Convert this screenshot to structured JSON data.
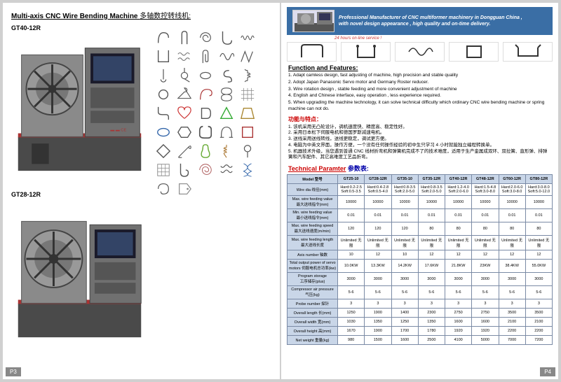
{
  "left": {
    "pageNum": "P3",
    "title_en": "Multi-axis CNC Wire Bending Machine",
    "title_cn": "多轴数控转线机:",
    "machines": [
      {
        "label": "GT40-12R"
      },
      {
        "label": "GT28-12R"
      }
    ],
    "sampleIcons": [
      "spring",
      "hairpin",
      "spiral",
      "hook",
      "coil-long",
      "bracket-u",
      "coil-long2",
      "clip",
      "wave",
      "zigzag",
      "pin",
      "torsion",
      "loop",
      "s-hook",
      "ext-spring",
      "ring",
      "hanger",
      "curl",
      "figure8",
      "mesh",
      "s-bend",
      "heart",
      "d-ring",
      "triangle",
      "trap",
      "oval",
      "hex",
      "carabiner",
      "omega",
      "square",
      "diamond",
      "safety-pin",
      "pear",
      "cork",
      "eyelet",
      "grid",
      "hook2",
      "spiral2",
      "coil3",
      "dna",
      "loop2",
      "tag"
    ]
  },
  "right": {
    "pageNum": "P4",
    "banner": {
      "line1": "Professional Manufacturer of CNC multiformer machinery in Dongguan China ,",
      "line2": "with novel design appearance , high quality and on-time delivery.",
      "sub": "24 hours on-line service !"
    },
    "featuresHeader": "Function and Features:",
    "featuresEn": [
      "1. Adapt camless design, fast adjusting of machine, high precision and stable quality",
      "2. Adopt Japan Panasonic Servo motor and Germany Roster reducer.",
      "3. Wire rotation design , stable feeding and more convenient adjustment of machine",
      "4. English and Chinese interface, easy operation , less experience required.",
      "5. When upgrading the machine technology, it can solve technical difficulty which ordinary CNC wire bending machine or spring machine can not do."
    ],
    "featuresCnHeader": "功能与特点：",
    "featuresCn": [
      "1. 该机采用无凸轮设计，调机速度快、精度高、稳定性好。",
      "2. 采用日本松下伺服电机和德国罗斯减速电机。",
      "3. 送线采用送线转线，送线更稳定，调试更方便。",
      "4. 电脑为中英文界面，操作方便，一个没有任何操作经验的初中生只学习 4 小时就能独立编程转换单。",
      "5. 机器技术升级，当您遇到普通 CNC 线材折弯机和弹簧机完成不了的技术难度，适用于生产金属成双环、双拉簧、直形弹、排弹簧和汽车配件、其它高难度工艺品折弯。"
    ],
    "paramHeader_en": "Technical Paramter",
    "paramHeader_cn": "参数表:",
    "table": {
      "headerLabel": "Model 型号",
      "models": [
        "GT25-10",
        "GT28-12R",
        "GT35-10",
        "GT35-12R",
        "GT40-12R",
        "GT48-12R",
        "GT60-12R",
        "GT80-12R"
      ],
      "rows": [
        {
          "label": "Wire dia 线径(mm)",
          "cells": [
            "Hard:0.2-2.5\nSoft:0.5-3.5",
            "Hard:0.4-2.8\nSoft:0.5-4.0",
            "Hard:0.8-3.5\nSoft:2.0-5.0",
            "Hard:0.8-3.5\nSoft:2.0-5.0",
            "Hard:1.2-4.0\nSoft:2.0-6.0",
            "Hard:1.5-4.8\nSoft:3.0-8.0",
            "Hard:2.0-6.0\nSoft:3.0-8.0",
            "Hard:3.0-8.0\nSoft:5.0-12.0"
          ]
        },
        {
          "label": "Max. wire feeding value\n最大送线指令(mm)",
          "cells": [
            "10000",
            "10000",
            "10000",
            "10000",
            "10000",
            "10000",
            "10000",
            "10000"
          ]
        },
        {
          "label": "Min. wire feeding value\n最小送线指令(mm)",
          "cells": [
            "0.01",
            "0.01",
            "0.01",
            "0.01",
            "0.01",
            "0.01",
            "0.01",
            "0.01"
          ]
        },
        {
          "label": "Max. wire feeding speed\n最大送线速度(m/min)",
          "cells": [
            "120",
            "120",
            "120",
            "80",
            "80",
            "80",
            "80",
            "80"
          ]
        },
        {
          "label": "Max. wire feeding length\n最大送线长度",
          "cells": [
            "Unlimited 无限",
            "Unlimited 无限",
            "Unlimited 无限",
            "Unlimited 无限",
            "Unlimited 无限",
            "Unlimited 无限",
            "Unlimited 无限",
            "Unlimited 无限"
          ]
        },
        {
          "label": "Axis number 轴数",
          "cells": [
            "10",
            "12",
            "10",
            "12",
            "12",
            "12",
            "12",
            "12"
          ]
        },
        {
          "label": "Total output power of servo motors 伺服电机总功率(kw)",
          "cells": [
            "10.0KW",
            "13.3KW",
            "14.2KW",
            "17.6KW",
            "21.8KW",
            "23KW",
            "38.4KW",
            "55.0KW"
          ]
        },
        {
          "label": "Program storage\n工序储存(plus)",
          "cells": [
            "3000",
            "3000",
            "3000",
            "3000",
            "3000",
            "3000",
            "3000",
            "3000"
          ]
        },
        {
          "label": "Compressor air pressure\n气压(kg)",
          "cells": [
            "5-6",
            "5-6",
            "5-6",
            "5-6",
            "5-6",
            "5-6",
            "5-6",
            "5-6"
          ]
        },
        {
          "label": "Probe number 探针",
          "cells": [
            "3",
            "3",
            "3",
            "3",
            "3",
            "3",
            "3",
            "3"
          ]
        },
        {
          "label": "Overall length 长(mm)",
          "cells": [
            "1250",
            "1900",
            "1400",
            "2300",
            "2750",
            "2750",
            "3500",
            "3500"
          ]
        },
        {
          "label": "Overall width 宽(mm)",
          "cells": [
            "1030",
            "1350",
            "1250",
            "1350",
            "1600",
            "1600",
            "2100",
            "2100"
          ]
        },
        {
          "label": "Overall height 高(mm)",
          "cells": [
            "1670",
            "1900",
            "1700",
            "1780",
            "1920",
            "1920",
            "2200",
            "2200"
          ]
        },
        {
          "label": "Net weight 重量(kg)",
          "cells": [
            "980",
            "1500",
            "1600",
            "2500",
            "4100",
            "5000",
            "7000",
            "7200"
          ]
        }
      ]
    }
  },
  "colors": {
    "bannerBg": "#3a6ea5",
    "tableHeader": "#c9d6e8",
    "tableBorder": "#7a8aa5",
    "red": "#c00",
    "blue": "#00a"
  }
}
